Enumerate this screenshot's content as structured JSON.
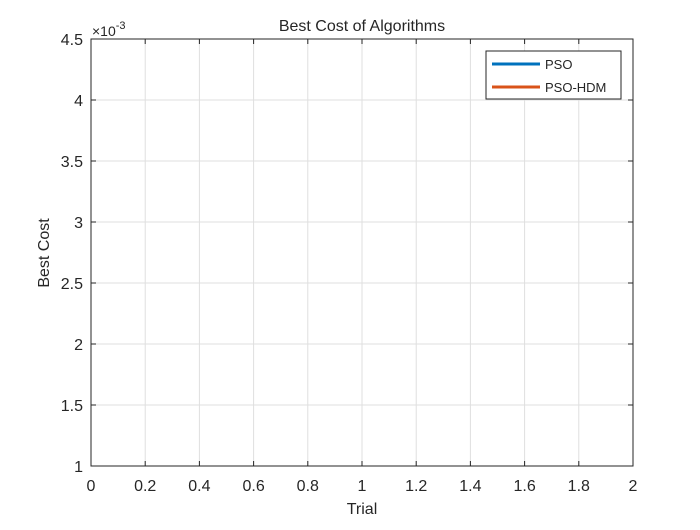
{
  "chart_data": {
    "type": "line",
    "title": "Best Cost of Algorithms",
    "xlabel": "Trial",
    "ylabel": "Best Cost",
    "y_exponent_label": "×10",
    "y_exponent_power": "-3",
    "xlim": [
      0,
      2
    ],
    "ylim": [
      1,
      4.5
    ],
    "x_ticks": [
      "0",
      "0.2",
      "0.4",
      "0.6",
      "0.8",
      "1",
      "1.2",
      "1.4",
      "1.6",
      "1.8",
      "2"
    ],
    "y_ticks": [
      "1",
      "1.5",
      "2",
      "2.5",
      "3",
      "3.5",
      "4",
      "4.5"
    ],
    "grid": true,
    "legend_position": "top-right",
    "series": [
      {
        "name": "PSO",
        "color": "#0072BD",
        "x": [],
        "y": []
      },
      {
        "name": "PSO-HDM",
        "color": "#D95319",
        "x": [],
        "y": []
      }
    ]
  }
}
